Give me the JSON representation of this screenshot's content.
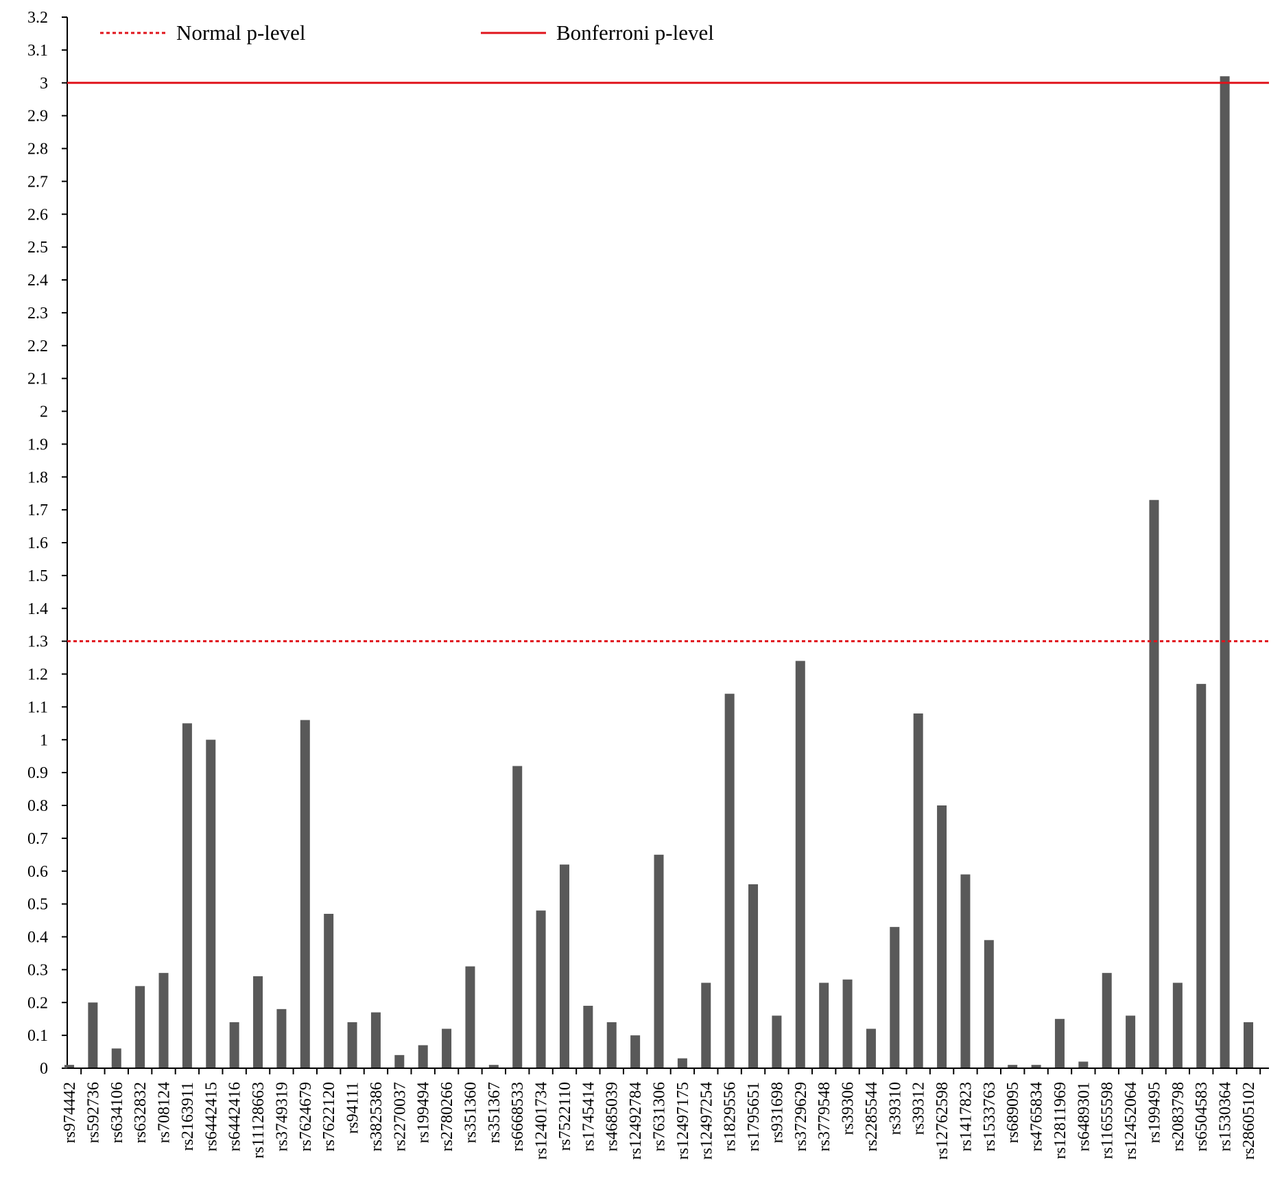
{
  "chart_data": {
    "type": "bar",
    "title": "",
    "xlabel": "",
    "ylabel": "",
    "ylim": [
      0,
      3.2
    ],
    "yticks": [
      "0",
      "0.1",
      "0.2",
      "0.3",
      "0.4",
      "0.5",
      "0.6",
      "0.7",
      "0.8",
      "0.9",
      "1",
      "1.1",
      "1.2",
      "1.3",
      "1.4",
      "1.5",
      "1.6",
      "1.7",
      "1.8",
      "1.9",
      "2",
      "2.1",
      "2.2",
      "2.3",
      "2.4",
      "2.5",
      "2.6",
      "2.7",
      "2.8",
      "2.9",
      "3",
      "3.1",
      "3.2"
    ],
    "categories": [
      "rs974442",
      "rs592736",
      "rs634106",
      "rs632832",
      "rs708124",
      "rs2163911",
      "rs6442415",
      "rs6442416",
      "rs11128663",
      "rs3749319",
      "rs7624679",
      "rs7622120",
      "rs94111",
      "rs3825386",
      "rs2270037",
      "rs199494",
      "rs2780266",
      "rs351360",
      "rs351367",
      "rs6668533",
      "rs12401734",
      "rs7522110",
      "rs1745414",
      "rs4685039",
      "rs12492784",
      "rs7631306",
      "rs12497175",
      "rs12497254",
      "rs1829556",
      "rs1795651",
      "rs931698",
      "rs3729629",
      "rs3779548",
      "rs39306",
      "rs2285544",
      "rs39310",
      "rs39312",
      "rs12762598",
      "rs1417823",
      "rs1533763",
      "rs689095",
      "rs4765834",
      "rs12811969",
      "rs6489301",
      "rs11655598",
      "rs12452064",
      "rs199495",
      "rs2083798",
      "rs6504583",
      "rs1530364",
      "rs28605102"
    ],
    "values": [
      0.01,
      0.2,
      0.06,
      0.25,
      0.29,
      1.05,
      1.0,
      0.14,
      0.28,
      0.18,
      1.06,
      0.47,
      0.14,
      0.17,
      0.04,
      0.07,
      0.12,
      0.31,
      0.01,
      0.92,
      0.48,
      0.62,
      0.19,
      0.14,
      0.1,
      0.65,
      0.03,
      0.26,
      1.14,
      0.56,
      0.16,
      1.24,
      0.26,
      0.27,
      0.12,
      0.43,
      1.08,
      0.8,
      0.59,
      0.39,
      0.01,
      0.01,
      0.15,
      0.02,
      0.29,
      0.16,
      1.73,
      0.26,
      1.17,
      3.02,
      0.14
    ],
    "bar_color": "#595959",
    "reference_lines": [
      {
        "name": "Normal p-level",
        "value": 1.3,
        "style": "dotted",
        "color": "#e0131b"
      },
      {
        "name": "Bonferroni p-level",
        "value": 3.0,
        "style": "solid",
        "color": "#e0131b"
      }
    ],
    "legend_position": "top-left",
    "grid": false
  }
}
